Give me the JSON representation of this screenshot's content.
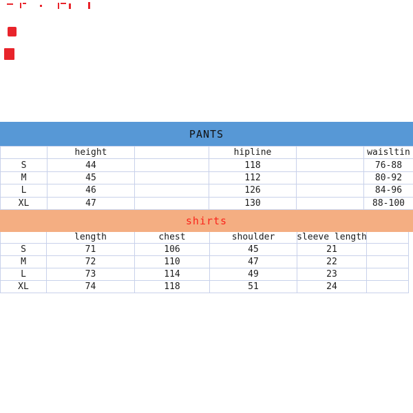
{
  "colors": {
    "pants_banner": "#5798d6",
    "shirts_banner": "#f4ae82",
    "shirts_title_red": "#fb241b",
    "grid_line": "#c8d1ea",
    "text": "#1c1c1c",
    "artifact_red": "#e8242b"
  },
  "chart_data": [
    {
      "type": "table",
      "title": "PANTS",
      "columns": [
        "",
        "height",
        "",
        "hipline",
        "",
        "waisltin"
      ],
      "rows": [
        [
          "S",
          "44",
          "",
          "118",
          "",
          "76-88"
        ],
        [
          "M",
          "45",
          "",
          "112",
          "",
          "80-92"
        ],
        [
          "L",
          "46",
          "",
          "126",
          "",
          "84-96"
        ],
        [
          "XL",
          "47",
          "",
          "130",
          "",
          "88-100"
        ]
      ],
      "notes": "last column clipped by right image edge"
    },
    {
      "type": "table",
      "title": "shirts",
      "columns": [
        "",
        "length",
        "chest",
        "shoulder",
        "sleeve length",
        ""
      ],
      "rows": [
        [
          "S",
          "71",
          "106",
          "45",
          "21",
          ""
        ],
        [
          "M",
          "72",
          "110",
          "47",
          "22",
          ""
        ],
        [
          "L",
          "73",
          "114",
          "49",
          "23",
          ""
        ],
        [
          "XL",
          "74",
          "118",
          "51",
          "24",
          ""
        ]
      ]
    }
  ]
}
